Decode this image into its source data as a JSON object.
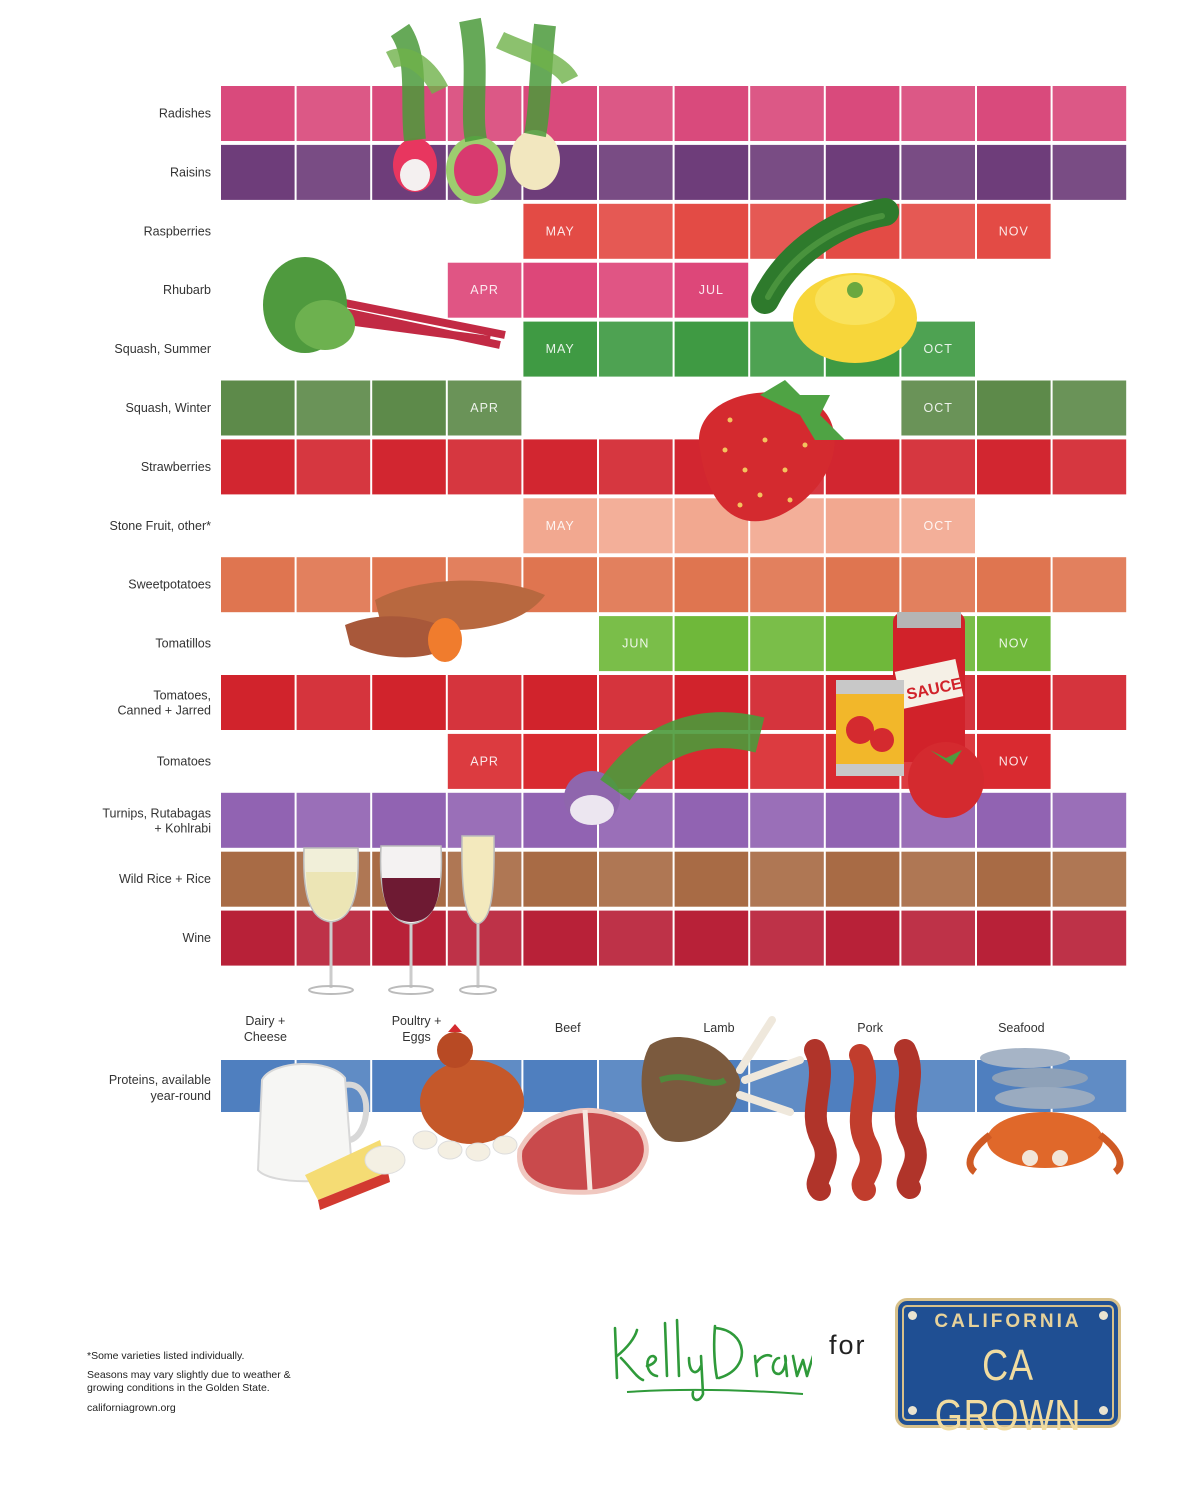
{
  "chart_data": {
    "type": "table",
    "title": "",
    "columns": 12,
    "rows": [
      {
        "label": "Radishes",
        "color": "#d94a7c",
        "start": 1,
        "end": 12,
        "start_label": "",
        "end_label": "",
        "mid_label": ""
      },
      {
        "label": "Raisins",
        "color": "#6e3d7a",
        "start": 1,
        "end": 12,
        "start_label": "",
        "end_label": "",
        "mid_label": ""
      },
      {
        "label": "Raspberries",
        "color": "#e34b45",
        "start": 5,
        "end": 11,
        "start_label": "MAY",
        "end_label": "NOV",
        "mid_label": ""
      },
      {
        "label": "Rhubarb",
        "color": "#dd4779",
        "start": 4,
        "end": 7,
        "start_label": "APR",
        "end_label": "JUL",
        "mid_label": ""
      },
      {
        "label": "Squash, Summer",
        "color": "#3f9a43",
        "start": 5,
        "end": 10,
        "start_label": "MAY",
        "end_label": "OCT",
        "mid_label": ""
      },
      {
        "label": "Squash, Winter",
        "color": "#5d8a4a",
        "segments": [
          [
            1,
            4
          ],
          [
            10,
            12
          ]
        ],
        "start_label": "APR",
        "end_label": "OCT",
        "mid_label": ""
      },
      {
        "label": "Strawberries",
        "color": "#d22630",
        "start": 1,
        "end": 12,
        "start_label": "",
        "end_label": "",
        "mid_label": ""
      },
      {
        "label": "Stone Fruit, other*",
        "color": "#f2a890",
        "start": 5,
        "end": 10,
        "start_label": "MAY",
        "end_label": "OCT",
        "mid_label": ""
      },
      {
        "label": "Sweetpotatoes",
        "color": "#df7550",
        "start": 1,
        "end": 12,
        "start_label": "",
        "end_label": "",
        "mid_label": ""
      },
      {
        "label": "Tomatillos",
        "color": "#6fb83a",
        "start": 6,
        "end": 11,
        "start_label": "JUN",
        "end_label": "NOV",
        "mid_label": ""
      },
      {
        "label": "Tomatoes,",
        "label2": "Canned + Jarred",
        "color": "#d1232c",
        "start": 1,
        "end": 12,
        "start_label": "",
        "end_label": "",
        "mid_label": ""
      },
      {
        "label": "Tomatoes",
        "color": "#d92a30",
        "start": 4,
        "end": 11,
        "start_label": "APR",
        "end_label": "NOV",
        "mid_label": ""
      },
      {
        "label": "Turnips, Rutabagas",
        "label2": "+ Kohlrabi",
        "color": "#9163b2",
        "start": 1,
        "end": 12,
        "start_label": "",
        "end_label": "",
        "mid_label": ""
      },
      {
        "label": "Wild Rice + Rice",
        "color": "#a86b45",
        "start": 1,
        "end": 12,
        "start_label": "",
        "end_label": "",
        "mid_label": ""
      },
      {
        "label": "Wine",
        "color": "#b82138",
        "start": 1,
        "end": 12,
        "start_label": "",
        "end_label": "",
        "mid_label": ""
      }
    ],
    "proteins": {
      "label": "Proteins, available",
      "label2": "year-round",
      "color": "#4f7fbf",
      "items": [
        {
          "label": "Dairy +",
          "label2": "Cheese"
        },
        {
          "label": "Poultry +",
          "label2": "Eggs"
        },
        {
          "label": "Beef",
          "label2": ""
        },
        {
          "label": "Lamb",
          "label2": ""
        },
        {
          "label": "Pork",
          "label2": ""
        },
        {
          "label": "Seafood",
          "label2": ""
        }
      ]
    }
  },
  "footnotes": {
    "note1": "*Some varieties listed individually.",
    "note2a": "Seasons may vary slightly due to weather &",
    "note2b": "growing conditions in the Golden State.",
    "url": "californiagrown.org"
  },
  "credit": {
    "artist": "KellyDraws",
    "for": "for",
    "plate_top": "CALIFORNIA",
    "plate_main": "CA GROWN"
  },
  "colors": {
    "plate_blue": "#1f4f93",
    "plate_gold": "#e7d29a",
    "signature_green": "#2f9a3a"
  },
  "icons": [
    "radish-icon",
    "rhubarb-icon",
    "zucchini-icon",
    "pattypan-squash-icon",
    "strawberry-icon",
    "sweetpotato-icon",
    "sauce-jar-icon",
    "tomato-can-icon",
    "tomato-icon",
    "turnip-icon",
    "white-wine-icon",
    "red-wine-icon",
    "champagne-icon",
    "milk-pitcher-icon",
    "cheese-icon",
    "chicken-icon",
    "steak-icon",
    "lamb-chop-icon",
    "bacon-icon",
    "fish-icon",
    "crab-icon"
  ]
}
